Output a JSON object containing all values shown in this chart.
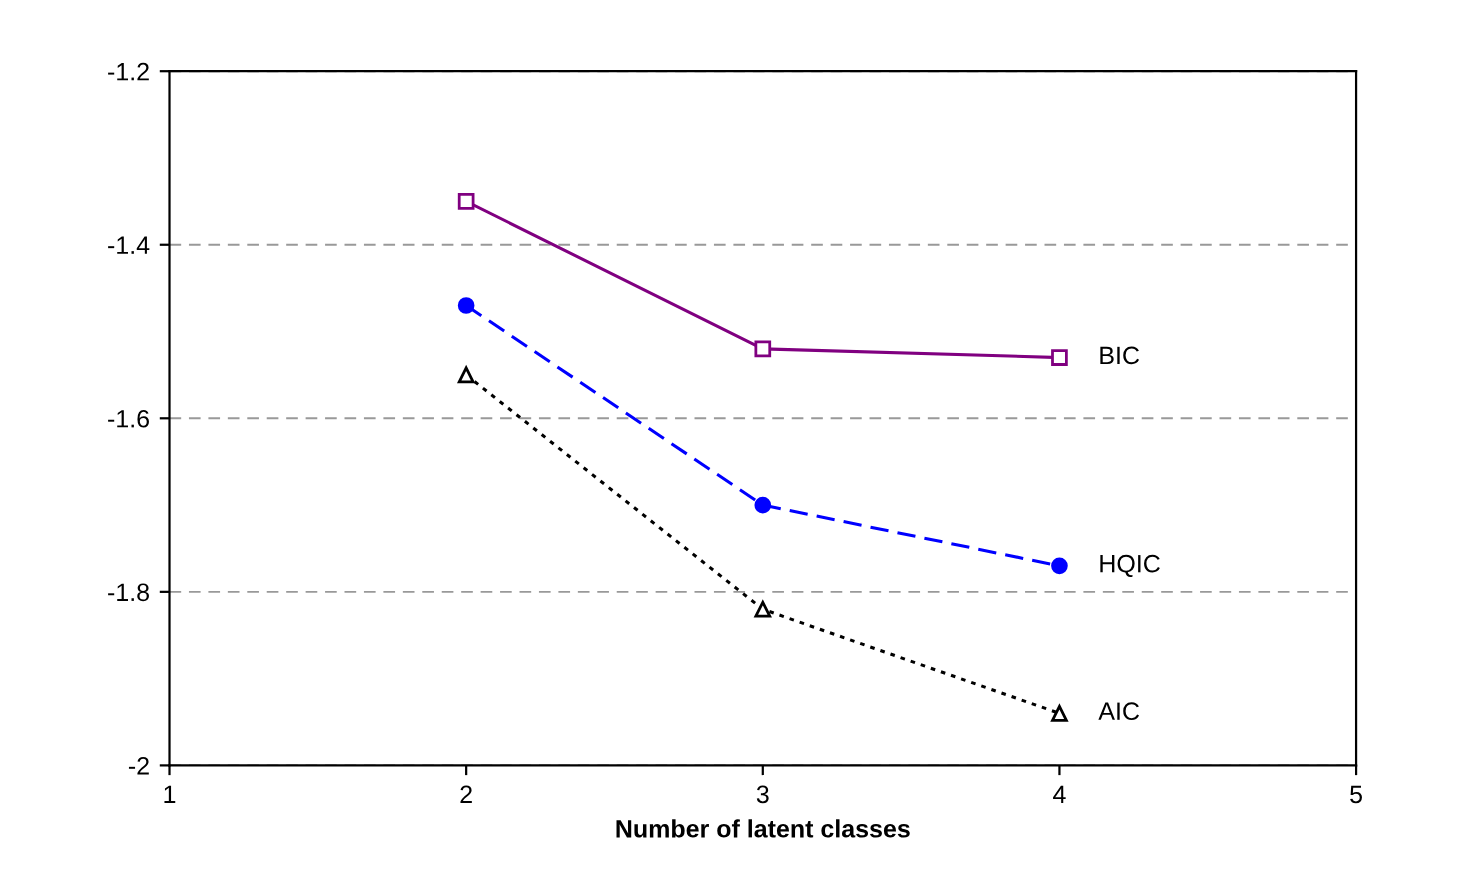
{
  "chart_data": {
    "type": "line",
    "xlabel": "Number of latent classes",
    "x": [
      2,
      3,
      4
    ],
    "series": [
      {
        "name": "BIC",
        "color": "#800080",
        "values": [
          -1.35,
          -1.52,
          -1.53
        ],
        "marker": "square",
        "line_style": "solid"
      },
      {
        "name": "HQIC",
        "color": "#0000ff",
        "values": [
          -1.47,
          -1.7,
          -1.77
        ],
        "marker": "circle",
        "line_style": "dashed"
      },
      {
        "name": "AIC",
        "color": "#000000",
        "values": [
          -1.55,
          -1.82,
          -1.94
        ],
        "marker": "triangle",
        "line_style": "dotted"
      }
    ],
    "xlim": [
      1,
      5
    ],
    "xticks": [
      1,
      2,
      3,
      4,
      5
    ],
    "ylim": [
      -2,
      -1.2
    ],
    "yticks": [
      -2,
      -1.8,
      -1.6,
      -1.4,
      -1.2
    ],
    "grid": "y",
    "legend": false
  }
}
